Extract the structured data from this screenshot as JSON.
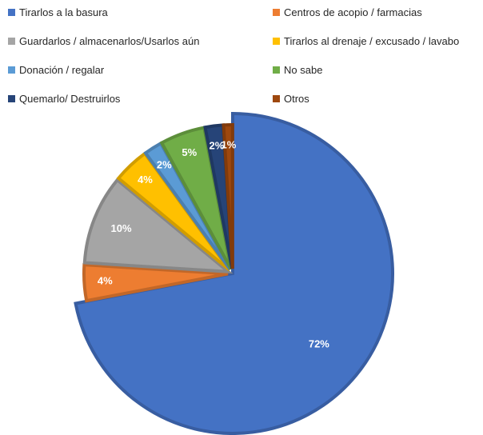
{
  "chart_data": {
    "type": "pie",
    "series": [
      {
        "categories": [
          "Tirarlos a la basura",
          "Centros de acopio / farmacias",
          "Guardarlos / almacenarlos/Usarlos aún",
          "Tirarlos al drenaje / excusado / lavabo",
          "Donación / regalar",
          "No sabe",
          "Quemarlo/ Destruirlos",
          "Otros"
        ],
        "values": [
          72,
          4,
          10,
          4,
          2,
          5,
          2,
          1
        ],
        "data_labels": [
          "72%",
          "4%",
          "10%",
          "4%",
          "2%",
          "5%",
          "2%",
          "1%"
        ]
      }
    ],
    "colors": [
      "#4472C4",
      "#ED7D31",
      "#A5A5A5",
      "#FFC000",
      "#5B9BD5",
      "#70AD47",
      "#264478",
      "#9E480E"
    ],
    "legend_position": "top",
    "start": "12 o'clock, clockwise"
  }
}
